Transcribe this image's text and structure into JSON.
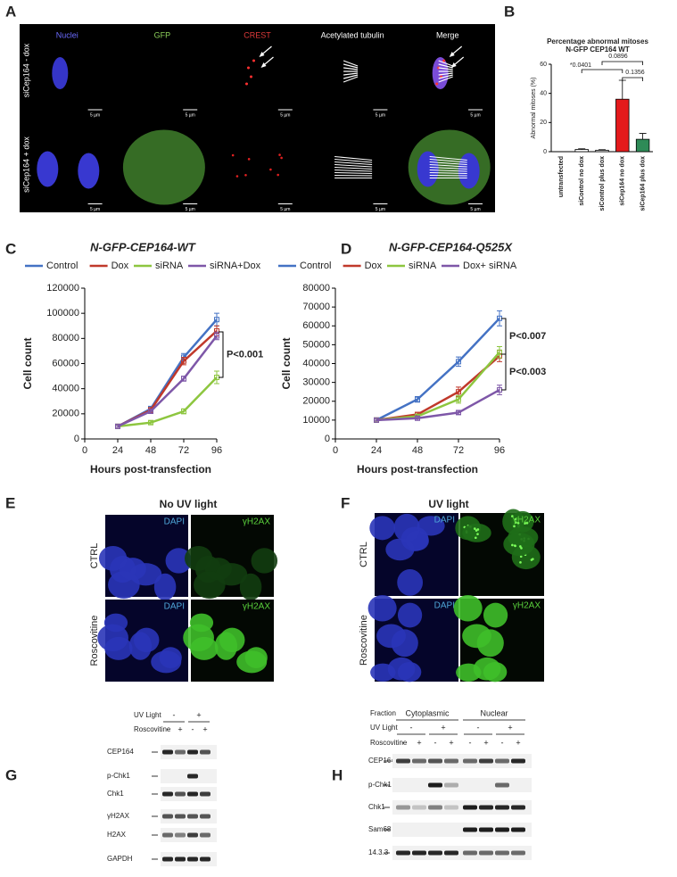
{
  "panel_a": {
    "label": "A",
    "channels": [
      "Nuclei",
      "GFP",
      "CREST",
      "Acetylated tubulin",
      "Merge"
    ],
    "rows": [
      "siCep164 - dox",
      "siCep164 + dox"
    ],
    "scale_bar": "5 µm"
  },
  "chart_data": [
    {
      "type": "bar",
      "panel": "B",
      "title": "Percentage abnormal mitoses",
      "subtitle": "N-GFP CEP164 WT",
      "y_label": "Abnormal mitoses (%)",
      "categories": [
        "untransfected",
        "siControl no dox",
        "siControl plus dox",
        "siCep164 no dox",
        "siCep164 plus dox"
      ],
      "values": [
        0,
        1.5,
        1,
        36,
        8.5
      ],
      "errors": [
        0,
        0.5,
        0.4,
        13,
        4
      ],
      "colors": [
        "#ffffff",
        "#ffffff",
        "#ffffff",
        "#e41a1c",
        "#2e8b57"
      ],
      "ylim": [
        0,
        60
      ],
      "yticks": [
        0,
        20,
        40,
        60
      ],
      "annotations": [
        "*0.0401",
        "0.0896",
        "0.1356"
      ]
    },
    {
      "type": "line",
      "panel": "C",
      "title": "N-GFP-CEP164-WT",
      "x_label": "Hours post-transfection",
      "y_label": "Cell count",
      "x": [
        24,
        48,
        72,
        96
      ],
      "xlim": [
        0,
        96
      ],
      "xticks": [
        0,
        24,
        48,
        72,
        96
      ],
      "ylim": [
        0,
        120000
      ],
      "yticks": [
        0,
        20000,
        40000,
        60000,
        80000,
        100000,
        120000
      ],
      "series": [
        {
          "name": "Control",
          "color": "#4472c4",
          "values": [
            10000,
            24000,
            65000,
            95000
          ],
          "errors": [
            800,
            2000,
            3000,
            5000
          ]
        },
        {
          "name": "Dox",
          "color": "#c0392b",
          "values": [
            10000,
            23000,
            62000,
            86000
          ],
          "errors": [
            800,
            2000,
            3000,
            4000
          ]
        },
        {
          "name": "siRNA",
          "color": "#8dc63f",
          "values": [
            10000,
            13000,
            22000,
            49000
          ],
          "errors": [
            800,
            1500,
            2000,
            5000
          ]
        },
        {
          "name": "siRNA+Dox",
          "color": "#7e57a8",
          "values": [
            10000,
            22000,
            48000,
            82000
          ],
          "errors": [
            800,
            1500,
            2000,
            3000
          ]
        }
      ],
      "annotations": [
        "P<0.001"
      ]
    },
    {
      "type": "line",
      "panel": "D",
      "title": "N-GFP-CEP164-Q525X",
      "x_label": "Hours post-transfection",
      "y_label": "Cell count",
      "x": [
        24,
        48,
        72,
        96
      ],
      "xlim": [
        0,
        96
      ],
      "xticks": [
        0,
        24,
        48,
        72,
        96
      ],
      "ylim": [
        0,
        80000
      ],
      "yticks": [
        0,
        10000,
        20000,
        30000,
        40000,
        50000,
        60000,
        70000,
        80000
      ],
      "series": [
        {
          "name": "Control",
          "color": "#4472c4",
          "values": [
            10000,
            21000,
            41000,
            64000
          ],
          "errors": [
            500,
            1500,
            2500,
            4000
          ]
        },
        {
          "name": "Dox",
          "color": "#c0392b",
          "values": [
            10000,
            13000,
            25000,
            44000
          ],
          "errors": [
            500,
            1000,
            2500,
            3000
          ]
        },
        {
          "name": "siRNA",
          "color": "#8dc63f",
          "values": [
            10000,
            12000,
            21000,
            46000
          ],
          "errors": [
            500,
            1000,
            2000,
            3000
          ]
        },
        {
          "name": "Dox+ siRNA",
          "color": "#7e57a8",
          "values": [
            10000,
            11000,
            14000,
            26000
          ],
          "errors": [
            500,
            1000,
            1000,
            2500
          ]
        }
      ],
      "annotations": [
        "P<0.007",
        "P<0.003"
      ]
    }
  ],
  "panel_e": {
    "label": "E",
    "title": "No UV light",
    "channels": [
      "DAPI",
      "γH2AX"
    ],
    "rows": [
      "CTRL",
      "Roscovitine"
    ]
  },
  "panel_f": {
    "label": "F",
    "title": "UV light",
    "channels": [
      "DAPI",
      "γH2AX"
    ],
    "rows": [
      "CTRL",
      "Roscovitine"
    ]
  },
  "panel_g": {
    "label": "G",
    "conditions": [
      {
        "name": "UV Light",
        "signs": [
          "-",
          "+"
        ]
      },
      {
        "name": "Roscovitine",
        "signs": [
          "-",
          "+",
          "-",
          "+"
        ]
      }
    ],
    "blots": [
      "CEP164",
      "p-Chk1",
      "Chk1",
      "γH2AX",
      "H2AX",
      "GAPDH"
    ]
  },
  "panel_h": {
    "label": "H",
    "fraction_label": "Fraction",
    "fractions": [
      "Cytoplasmic",
      "Nuclear"
    ],
    "conditions": [
      {
        "name": "UV Light",
        "signs": [
          "-",
          "+",
          "-",
          "+"
        ]
      },
      {
        "name": "Roscovitine",
        "signs": [
          "-",
          "+",
          "-",
          "+",
          "-",
          "+",
          "-",
          "+"
        ]
      }
    ],
    "blots": [
      "CEP164",
      "p-Chk1",
      "Chk1",
      "Sam68",
      "14.3.3"
    ]
  }
}
